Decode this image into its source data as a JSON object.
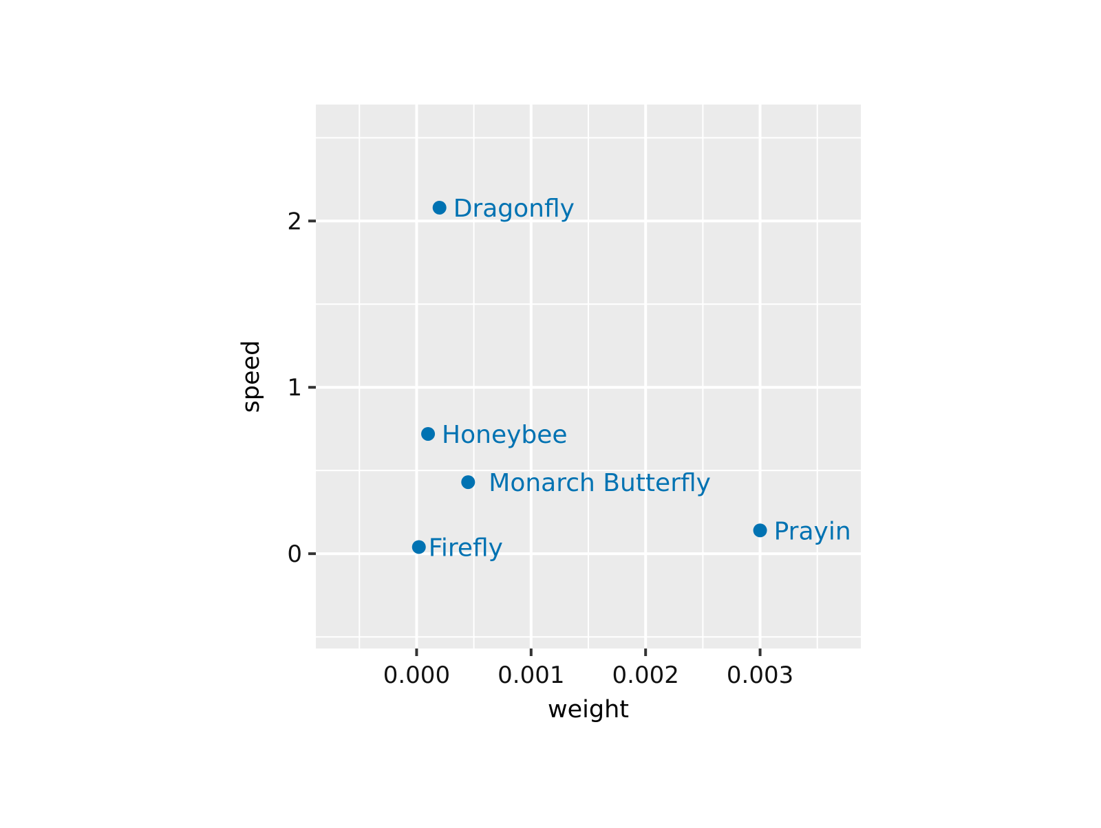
{
  "chart_data": {
    "type": "scatter",
    "title": "",
    "xlabel": "weight",
    "ylabel": "speed",
    "xlim": [
      -0.00088,
      0.00388
    ],
    "ylim": [
      -0.57,
      2.7
    ],
    "x_ticks": [
      0.0,
      0.001,
      0.002,
      0.003
    ],
    "x_tick_labels": [
      "0.000",
      "0.001",
      "0.002",
      "0.003"
    ],
    "y_ticks": [
      0,
      1,
      2
    ],
    "y_tick_labels": [
      "0",
      "1",
      "2"
    ],
    "x_minor_ticks": [
      -0.0005,
      0.0005,
      0.0015,
      0.0025,
      0.0035
    ],
    "y_minor_ticks": [
      -0.5,
      0.5,
      1.5,
      2.5
    ],
    "grid": true,
    "legend": "none",
    "panel_color": "#EBEBEB",
    "grid_color": "#FFFFFF",
    "point_color": "#0072B2",
    "points": [
      {
        "label": "Dragonfly",
        "x": 0.0002,
        "y": 2.08
      },
      {
        "label": "Honeybee",
        "x": 0.0001,
        "y": 0.72
      },
      {
        "label": "Monarch Butterfly",
        "x": 0.00045,
        "y": 0.43
      },
      {
        "label": "Prayin",
        "x": 0.003,
        "y": 0.14
      },
      {
        "label": "Firefly",
        "x": 2e-05,
        "y": 0.04
      }
    ]
  }
}
